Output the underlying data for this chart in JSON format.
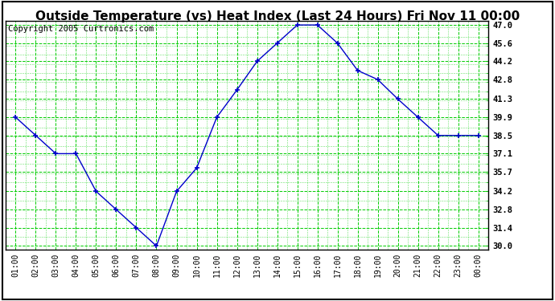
{
  "title": "Outside Temperature (vs) Heat Index (Last 24 Hours) Fri Nov 11 00:00",
  "copyright": "Copyright 2005 Curtronics.com",
  "x_labels": [
    "01:00",
    "02:00",
    "03:00",
    "04:00",
    "05:00",
    "06:00",
    "07:00",
    "08:00",
    "09:00",
    "10:00",
    "11:00",
    "12:00",
    "13:00",
    "14:00",
    "15:00",
    "16:00",
    "17:00",
    "18:00",
    "19:00",
    "20:00",
    "21:00",
    "22:00",
    "23:00",
    "00:00"
  ],
  "y_values": [
    39.9,
    38.5,
    37.1,
    37.1,
    34.2,
    32.8,
    31.4,
    30.0,
    34.2,
    36.0,
    39.9,
    42.0,
    44.2,
    45.6,
    47.0,
    47.0,
    45.6,
    43.5,
    42.8,
    41.3,
    39.9,
    38.5,
    38.5,
    38.5
  ],
  "y_ticks": [
    30.0,
    31.4,
    32.8,
    34.2,
    35.7,
    37.1,
    38.5,
    39.9,
    41.3,
    42.8,
    44.2,
    45.6,
    47.0
  ],
  "ylim": [
    30.0,
    47.0
  ],
  "line_color": "#0000CC",
  "marker_color": "#0000CC",
  "background_color": "#FFFFFF",
  "plot_bg_color": "#FFFFFF",
  "grid_color_major": "#00CC00",
  "grid_color_minor": "#00CC00",
  "title_fontsize": 11,
  "copyright_fontsize": 7.5
}
